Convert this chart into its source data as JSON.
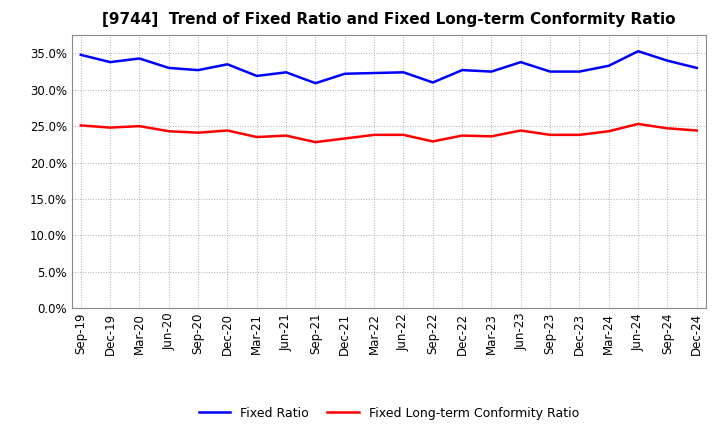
{
  "title": "[9744]  Trend of Fixed Ratio and Fixed Long-term Conformity Ratio",
  "x_labels": [
    "Sep-19",
    "Dec-19",
    "Mar-20",
    "Jun-20",
    "Sep-20",
    "Dec-20",
    "Mar-21",
    "Jun-21",
    "Sep-21",
    "Dec-21",
    "Mar-22",
    "Jun-22",
    "Sep-22",
    "Dec-22",
    "Mar-23",
    "Jun-23",
    "Sep-23",
    "Dec-23",
    "Mar-24",
    "Jun-24",
    "Sep-24",
    "Dec-24"
  ],
  "fixed_ratio": [
    34.8,
    33.8,
    34.3,
    33.0,
    32.7,
    33.5,
    31.9,
    32.4,
    30.9,
    32.2,
    32.3,
    32.4,
    31.0,
    32.7,
    32.5,
    33.8,
    32.5,
    32.5,
    33.3,
    35.3,
    34.0,
    33.0
  ],
  "fixed_lt_ratio": [
    25.1,
    24.8,
    25.0,
    24.3,
    24.1,
    24.4,
    23.5,
    23.7,
    22.8,
    23.3,
    23.8,
    23.8,
    22.9,
    23.7,
    23.6,
    24.4,
    23.8,
    23.8,
    24.3,
    25.3,
    24.7,
    24.4
  ],
  "fixed_ratio_color": "#0000FF",
  "fixed_lt_ratio_color": "#FF0000",
  "ylim": [
    0,
    37.5
  ],
  "yticks": [
    0.0,
    5.0,
    10.0,
    15.0,
    20.0,
    25.0,
    30.0,
    35.0
  ],
  "grid_color": "#999999",
  "background_color": "#ffffff",
  "legend_fixed_ratio": "Fixed Ratio",
  "legend_fixed_lt_ratio": "Fixed Long-term Conformity Ratio",
  "line_width": 1.8,
  "title_fontsize": 11,
  "tick_fontsize": 8.5,
  "legend_fontsize": 9
}
